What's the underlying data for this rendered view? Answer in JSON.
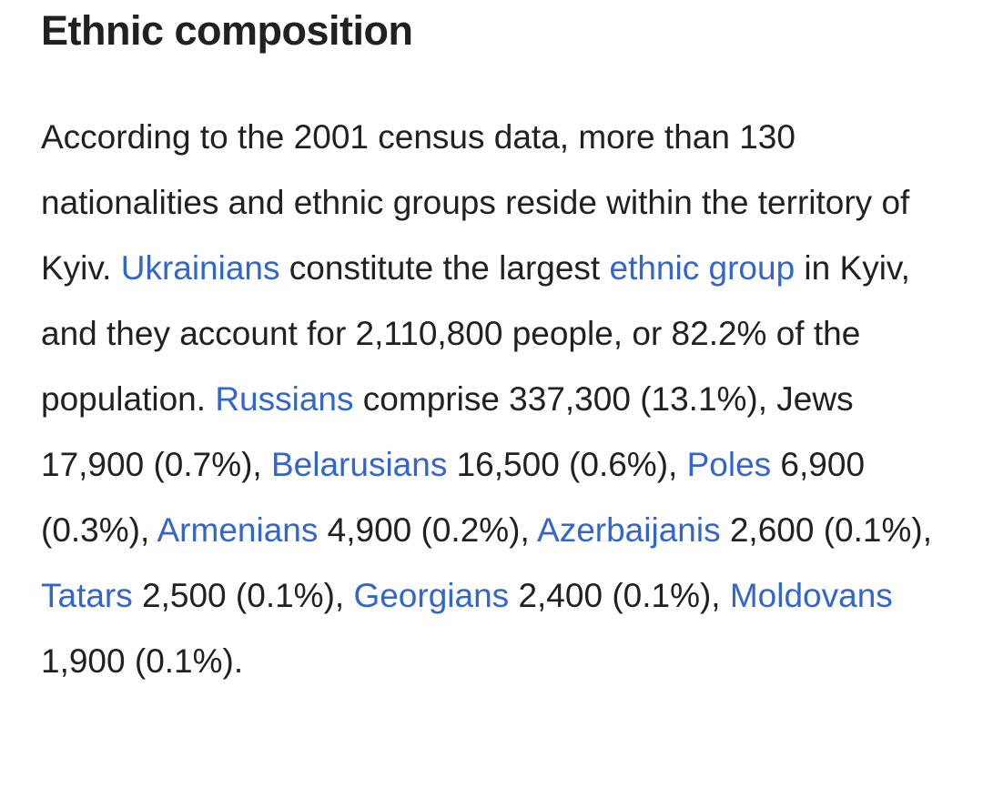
{
  "heading": "Ethnic composition",
  "paragraph": [
    {
      "text": "According to the 2001 census data, more than 130 nationalities and ethnic groups reside within the territory of Kyiv. ",
      "link": false
    },
    {
      "text": "Ukrainians",
      "link": true
    },
    {
      "text": " constitute the largest ",
      "link": false
    },
    {
      "text": "ethnic group",
      "link": true
    },
    {
      "text": " in Kyiv, and they account for 2,110,800 people, or 82.2% of the population. ",
      "link": false
    },
    {
      "text": "Russians",
      "link": true
    },
    {
      "text": " comprise 337,300 (13.1%), Jews 17,900 (0.7%), ",
      "link": false
    },
    {
      "text": "Belarusians",
      "link": true
    },
    {
      "text": " 16,500 (0.6%), ",
      "link": false
    },
    {
      "text": "Poles",
      "link": true
    },
    {
      "text": " 6,900 (0.3%), ",
      "link": false
    },
    {
      "text": "Armenians",
      "link": true
    },
    {
      "text": " 4,900 (0.2%), ",
      "link": false
    },
    {
      "text": "Azerbaijanis",
      "link": true
    },
    {
      "text": " 2,600 (0.1%), ",
      "link": false
    },
    {
      "text": "Tatars",
      "link": true
    },
    {
      "text": " 2,500 (0.1%), ",
      "link": false
    },
    {
      "text": "Georgians",
      "link": true
    },
    {
      "text": " 2,400 (0.1%), ",
      "link": false
    },
    {
      "text": "Moldovans",
      "link": true
    },
    {
      "text": " 1,900 (0.1%).",
      "link": false
    }
  ]
}
